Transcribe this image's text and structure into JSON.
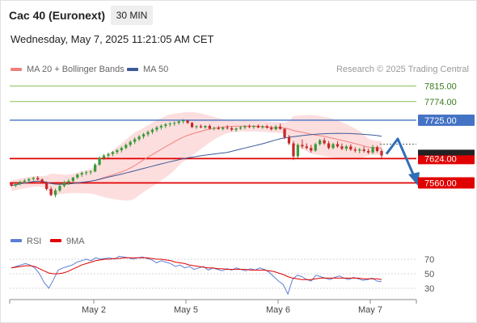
{
  "header": {
    "instrument": "Cac 40 (Euronext)",
    "interval": "30 MIN",
    "datetime": "Wednesday, May 7, 2025 11:21:05 AM CET"
  },
  "legend": {
    "ma20": "MA 20 + Bollinger Bands",
    "ma50": "MA 50",
    "credit": "Research © 2025 Trading Central",
    "rsi": "RSI",
    "ma9": "9MA"
  },
  "colors": {
    "ma20": "#f08080",
    "ma50": "#3d5a99",
    "band": "#fcd3d3",
    "up": "#3a9a3a",
    "down": "#c62828",
    "res_green": "#8dbf5a",
    "res_blue": "#4472c4",
    "sup_red": "#e00000",
    "arrow": "#2f6db5",
    "rsi": "#5b7fd6",
    "rsi_ma": "#e00000"
  },
  "chart_data": [
    {
      "type": "candlestick",
      "x_ticks": [
        "May 2",
        "May 5",
        "May 6",
        "May 7"
      ],
      "ylim": [
        7540,
        7840
      ],
      "levels": [
        {
          "value": 7815.0,
          "label": "7815.00",
          "kind": "resistance-minor"
        },
        {
          "value": 7774.0,
          "label": "7774.00",
          "kind": "resistance-minor"
        },
        {
          "value": 7725.0,
          "label": "7725.00",
          "kind": "pivot"
        },
        {
          "value": 7624.0,
          "label": "7624.00",
          "kind": "support"
        },
        {
          "value": 7560.0,
          "label": "7560.00",
          "kind": "support"
        }
      ],
      "candles": [
        [
          7558,
          7562,
          7550,
          7553
        ],
        [
          7553,
          7560,
          7549,
          7557
        ],
        [
          7557,
          7566,
          7554,
          7563
        ],
        [
          7563,
          7570,
          7559,
          7566
        ],
        [
          7566,
          7573,
          7561,
          7570
        ],
        [
          7570,
          7576,
          7566,
          7573
        ],
        [
          7573,
          7578,
          7567,
          7569
        ],
        [
          7569,
          7572,
          7558,
          7561
        ],
        [
          7561,
          7564,
          7540,
          7544
        ],
        [
          7544,
          7550,
          7525,
          7528
        ],
        [
          7528,
          7545,
          7522,
          7540
        ],
        [
          7540,
          7558,
          7536,
          7552
        ],
        [
          7552,
          7566,
          7548,
          7562
        ],
        [
          7562,
          7570,
          7555,
          7565
        ],
        [
          7565,
          7576,
          7560,
          7574
        ],
        [
          7574,
          7585,
          7570,
          7582
        ],
        [
          7582,
          7590,
          7576,
          7586
        ],
        [
          7586,
          7592,
          7580,
          7588
        ],
        [
          7588,
          7593,
          7582,
          7590
        ],
        [
          7590,
          7612,
          7588,
          7608
        ],
        [
          7608,
          7630,
          7605,
          7626
        ],
        [
          7626,
          7636,
          7620,
          7632
        ],
        [
          7632,
          7640,
          7626,
          7636
        ],
        [
          7636,
          7644,
          7630,
          7641
        ],
        [
          7641,
          7650,
          7636,
          7646
        ],
        [
          7646,
          7656,
          7640,
          7652
        ],
        [
          7652,
          7664,
          7648,
          7660
        ],
        [
          7660,
          7672,
          7655,
          7668
        ],
        [
          7668,
          7680,
          7662,
          7675
        ],
        [
          7675,
          7686,
          7670,
          7682
        ],
        [
          7682,
          7692,
          7676,
          7688
        ],
        [
          7688,
          7698,
          7682,
          7694
        ],
        [
          7694,
          7704,
          7688,
          7700
        ],
        [
          7700,
          7710,
          7694,
          7706
        ],
        [
          7706,
          7714,
          7700,
          7710
        ],
        [
          7710,
          7718,
          7704,
          7714
        ],
        [
          7714,
          7720,
          7708,
          7716
        ],
        [
          7716,
          7722,
          7710,
          7718
        ],
        [
          7718,
          7726,
          7713,
          7722
        ],
        [
          7722,
          7728,
          7716,
          7724
        ],
        [
          7724,
          7726,
          7715,
          7718
        ],
        [
          7718,
          7720,
          7704,
          7707
        ],
        [
          7707,
          7712,
          7702,
          7709
        ],
        [
          7709,
          7714,
          7704,
          7706
        ],
        [
          7706,
          7712,
          7702,
          7710
        ],
        [
          7710,
          7714,
          7700,
          7703
        ],
        [
          7703,
          7708,
          7698,
          7705
        ],
        [
          7705,
          7710,
          7700,
          7702
        ],
        [
          7702,
          7708,
          7698,
          7706
        ],
        [
          7706,
          7712,
          7700,
          7704
        ],
        [
          7704,
          7708,
          7696,
          7700
        ],
        [
          7700,
          7706,
          7694,
          7703
        ],
        [
          7703,
          7710,
          7700,
          7706
        ],
        [
          7706,
          7712,
          7701,
          7709
        ],
        [
          7709,
          7714,
          7704,
          7707
        ],
        [
          7707,
          7712,
          7702,
          7710
        ],
        [
          7710,
          7714,
          7704,
          7706
        ],
        [
          7706,
          7712,
          7702,
          7709
        ],
        [
          7709,
          7713,
          7703,
          7705
        ],
        [
          7705,
          7710,
          7698,
          7701
        ],
        [
          7701,
          7712,
          7698,
          7708
        ],
        [
          7708,
          7716,
          7700,
          7702
        ],
        [
          7702,
          7704,
          7675,
          7680
        ],
        [
          7680,
          7686,
          7660,
          7664
        ],
        [
          7664,
          7670,
          7620,
          7630
        ],
        [
          7630,
          7664,
          7626,
          7660
        ],
        [
          7660,
          7674,
          7650,
          7656
        ],
        [
          7656,
          7664,
          7648,
          7652
        ],
        [
          7652,
          7660,
          7640,
          7645
        ],
        [
          7645,
          7666,
          7642,
          7662
        ],
        [
          7662,
          7676,
          7658,
          7672
        ],
        [
          7672,
          7678,
          7660,
          7664
        ],
        [
          7664,
          7670,
          7648,
          7652
        ],
        [
          7652,
          7666,
          7648,
          7662
        ],
        [
          7662,
          7670,
          7652,
          7656
        ],
        [
          7656,
          7664,
          7646,
          7650
        ],
        [
          7650,
          7660,
          7644,
          7656
        ],
        [
          7656,
          7662,
          7644,
          7648
        ],
        [
          7648,
          7654,
          7640,
          7645
        ],
        [
          7645,
          7652,
          7638,
          7648
        ],
        [
          7648,
          7656,
          7640,
          7644
        ],
        [
          7644,
          7650,
          7636,
          7640
        ],
        [
          7640,
          7660,
          7636,
          7654
        ],
        [
          7654,
          7658,
          7640,
          7644
        ],
        [
          7644,
          7650,
          7626,
          7632
        ]
      ],
      "ma_values": [
        7570,
        7650,
        7700
      ]
    },
    {
      "type": "line",
      "name": "RSI",
      "y_ticks": [
        70,
        50,
        30
      ],
      "ylim": [
        10,
        90
      ],
      "series": [
        {
          "name": "RSI",
          "values": [
            58,
            60,
            62,
            64,
            62,
            58,
            50,
            38,
            30,
            42,
            55,
            58,
            60,
            62,
            66,
            68,
            70,
            68,
            72,
            70,
            71,
            72,
            70,
            74,
            73,
            72,
            70,
            72,
            73,
            71,
            69,
            65,
            68,
            66,
            64,
            60,
            62,
            58,
            60,
            56,
            58,
            60,
            55,
            58,
            56,
            54,
            57,
            55,
            58,
            56,
            54,
            57,
            55,
            58,
            56,
            52,
            46,
            40,
            35,
            22,
            42,
            48,
            46,
            42,
            40,
            48,
            46,
            44,
            42,
            45,
            47,
            44,
            42,
            45,
            43,
            41,
            42,
            44,
            40,
            39
          ]
        },
        {
          "name": "9MA",
          "values": [
            58,
            59,
            60,
            61,
            61,
            60,
            57,
            54,
            51,
            50,
            50,
            51,
            53,
            56,
            59,
            62,
            64,
            66,
            68,
            69,
            70,
            70,
            71,
            71,
            72,
            72,
            72,
            72,
            72,
            72,
            71,
            70,
            70,
            69,
            68,
            66,
            65,
            64,
            62,
            61,
            60,
            59,
            58,
            58,
            57,
            57,
            56,
            56,
            56,
            56,
            56,
            55,
            55,
            55,
            55,
            54,
            53,
            51,
            49,
            46,
            44,
            43,
            42,
            42,
            42,
            43,
            44,
            44,
            44,
            44,
            44,
            44,
            44,
            44,
            44,
            43,
            43,
            43,
            43,
            42
          ]
        }
      ]
    }
  ]
}
